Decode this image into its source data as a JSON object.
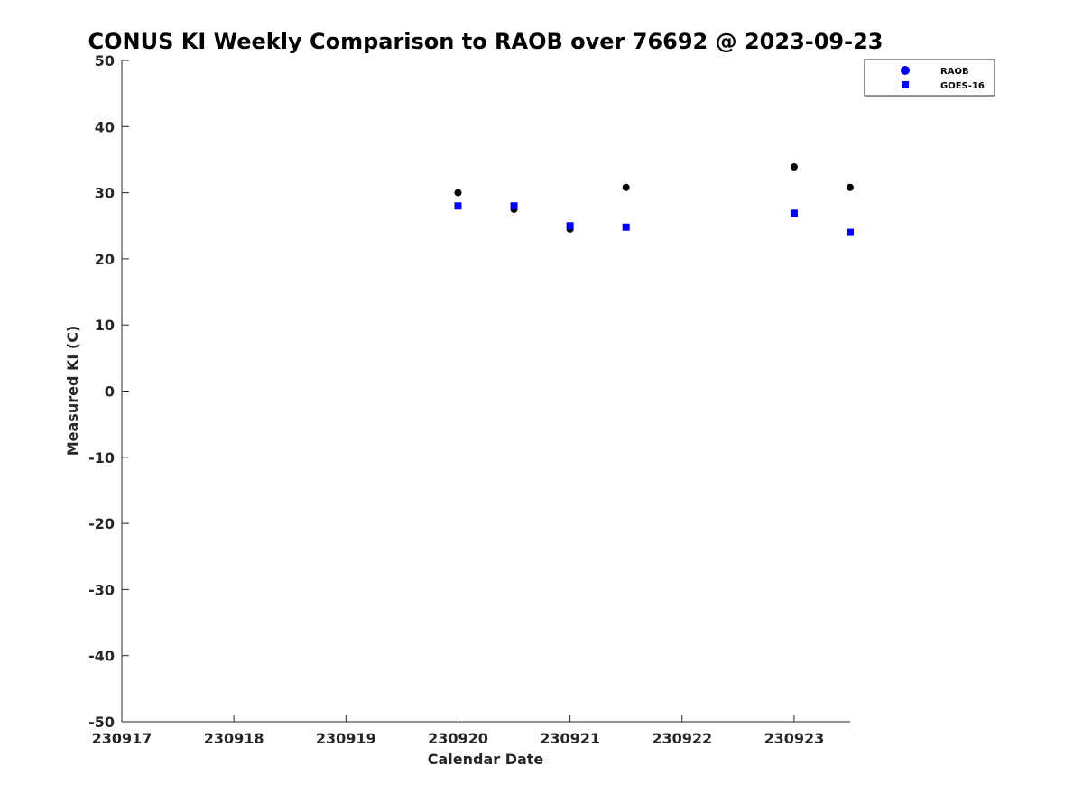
{
  "chart_data": {
    "type": "scatter",
    "title": "CONUS KI Weekly Comparison to RAOB over 76692 @ 2023-09-23",
    "xlabel": "Calendar Date",
    "ylabel": "Measured KI (C)",
    "xlim": [
      0,
      6.5
    ],
    "ylim": [
      -50,
      50
    ],
    "x_ticks": [
      {
        "value": 0,
        "label": "230917"
      },
      {
        "value": 1,
        "label": "230918"
      },
      {
        "value": 2,
        "label": "230919"
      },
      {
        "value": 3,
        "label": "230920"
      },
      {
        "value": 4,
        "label": "230921"
      },
      {
        "value": 5,
        "label": "230922"
      },
      {
        "value": 6,
        "label": "230923"
      }
    ],
    "y_ticks": [
      -50,
      -40,
      -30,
      -20,
      -10,
      0,
      10,
      20,
      30,
      40,
      50
    ],
    "grid": false,
    "legend_position": "top-right",
    "series": [
      {
        "name": "RAOB",
        "marker": "circle",
        "color": "#000000",
        "legend_color": "#0000ff",
        "x": [
          3,
          3.5,
          4,
          4.5,
          6,
          6.5
        ],
        "y": [
          30,
          27.5,
          24.5,
          30.8,
          33.9,
          30.8
        ]
      },
      {
        "name": "GOES-16",
        "marker": "square",
        "color": "#0000ff",
        "legend_color": "#0000ff",
        "x": [
          3,
          3.5,
          4,
          4.5,
          6,
          6.5
        ],
        "y": [
          28,
          28,
          25,
          24.8,
          26.9,
          24
        ]
      }
    ]
  }
}
